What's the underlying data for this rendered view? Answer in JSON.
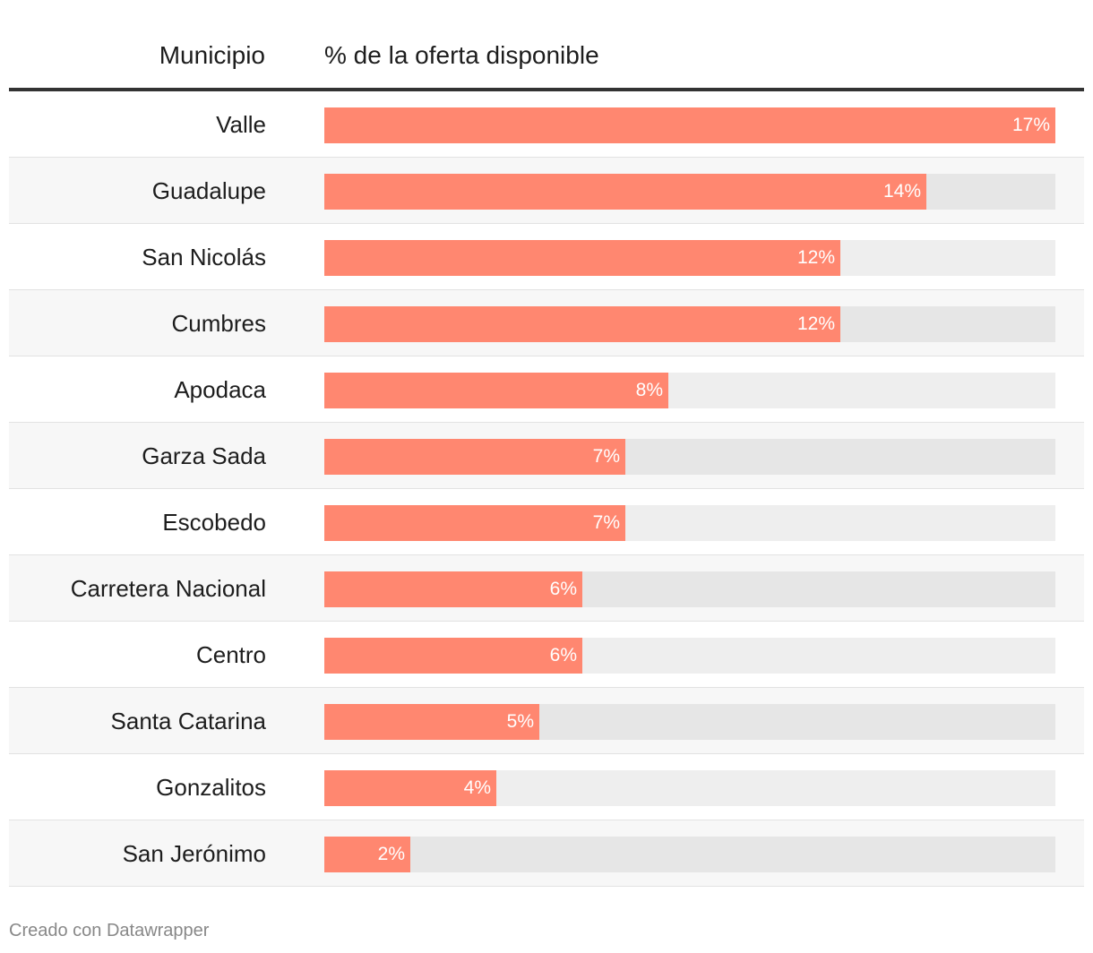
{
  "header": {
    "col_municipio": "Municipio",
    "col_pct": "% de la oferta disponible"
  },
  "footer": {
    "credit": "Creado con Datawrapper"
  },
  "colors": {
    "bar": "#ff8770",
    "track": "#e6e6e6",
    "rule": "#333333"
  },
  "chart_data": {
    "type": "bar",
    "orientation": "horizontal",
    "categories": [
      "Valle",
      "Guadalupe",
      "San Nicolás",
      "Cumbres",
      "Apodaca",
      "Garza Sada",
      "Escobedo",
      "Carretera Nacional",
      "Centro",
      "Santa Catarina",
      "Gonzalitos",
      "San Jerónimo"
    ],
    "values": [
      17,
      14,
      12,
      12,
      8,
      7,
      7,
      6,
      6,
      5,
      4,
      2
    ],
    "value_labels": [
      "17%",
      "14%",
      "12%",
      "12%",
      "8%",
      "7%",
      "7%",
      "6%",
      "6%",
      "5%",
      "4%",
      "2%"
    ],
    "xlim": [
      0,
      17
    ],
    "grid": false
  }
}
